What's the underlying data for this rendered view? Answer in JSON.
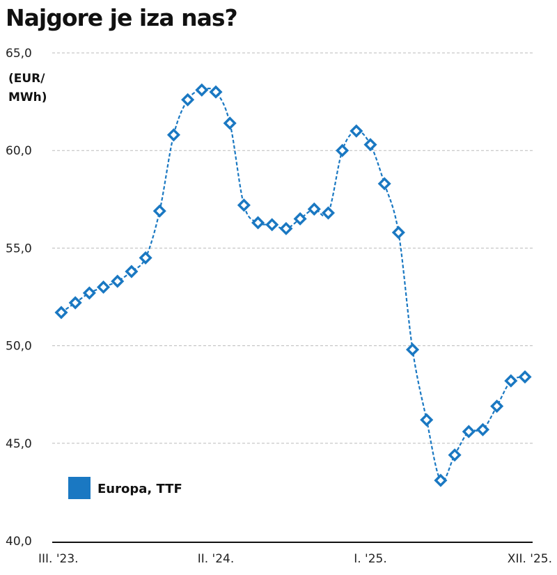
{
  "chart_data": {
    "type": "line",
    "title": "Najgore je iza nas?",
    "ylabel": "(EUR/ MWh)",
    "xlabel": "",
    "ylim": [
      40,
      65
    ],
    "yticks": [
      "40,0",
      "45,0",
      "50,0",
      "55,0",
      "60,0",
      "65,0"
    ],
    "ytick_values": [
      40,
      45,
      50,
      55,
      60,
      65
    ],
    "xticks": [
      {
        "index": 0,
        "label": "III. '23."
      },
      {
        "index": 11,
        "label": "II. '24."
      },
      {
        "index": 22,
        "label": "I. '25."
      },
      {
        "index": 33,
        "label": "XII. '25."
      }
    ],
    "grid": true,
    "legend_position": "bottom-left",
    "series": [
      {
        "name": "Europa, TTF",
        "color": "#1a78c2",
        "values": [
          51.7,
          52.2,
          52.7,
          53.0,
          53.3,
          53.8,
          54.5,
          56.9,
          60.8,
          62.6,
          63.1,
          63.0,
          61.4,
          57.2,
          56.3,
          56.2,
          56.0,
          56.5,
          57.0,
          56.8,
          60.0,
          61.0,
          60.3,
          58.3,
          55.8,
          49.8,
          46.2,
          43.1,
          44.4,
          45.6,
          45.7,
          46.9,
          48.2,
          48.4
        ]
      }
    ]
  }
}
